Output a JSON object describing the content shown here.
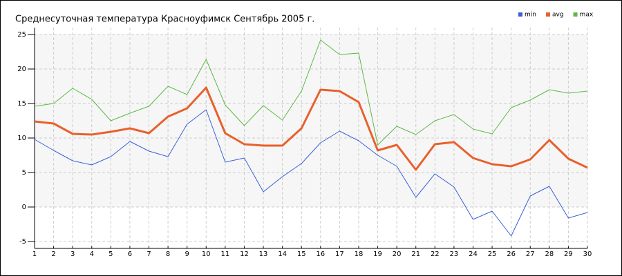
{
  "chart_data": {
    "type": "line",
    "title": "Среднесуточная температура Красноуфимск  Сентябрь 2005 г.",
    "x": [
      1,
      2,
      3,
      4,
      5,
      6,
      7,
      8,
      9,
      10,
      11,
      12,
      13,
      14,
      15,
      16,
      17,
      18,
      19,
      20,
      21,
      22,
      23,
      24,
      25,
      26,
      27,
      28,
      29,
      30
    ],
    "xlim": [
      1,
      30
    ],
    "xticks": [
      1,
      2,
      3,
      4,
      5,
      6,
      7,
      8,
      9,
      10,
      11,
      12,
      13,
      14,
      15,
      16,
      17,
      18,
      19,
      20,
      21,
      22,
      23,
      24,
      25,
      26,
      27,
      28,
      29,
      30
    ],
    "ylim": [
      -6,
      26
    ],
    "yticks": [
      -5,
      0,
      5,
      10,
      15,
      20,
      25
    ],
    "shade_band": [
      0,
      25
    ],
    "grid": true,
    "legend": "top-right",
    "series": [
      {
        "name": "min",
        "color": "#3a5fd8",
        "values": [
          9.8,
          8.2,
          6.7,
          6.1,
          7.3,
          9.5,
          8.1,
          7.3,
          12.0,
          14.1,
          6.5,
          7.1,
          2.2,
          4.4,
          6.3,
          9.3,
          11.0,
          9.6,
          7.5,
          5.9,
          1.4,
          4.8,
          2.9,
          -1.8,
          -0.6,
          -4.2,
          1.6,
          3.0,
          -1.6,
          -0.8
        ]
      },
      {
        "name": "avg",
        "color": "#e8602c",
        "values": [
          12.4,
          12.1,
          10.6,
          10.5,
          10.9,
          11.4,
          10.7,
          13.1,
          14.3,
          17.3,
          10.7,
          9.1,
          8.9,
          8.9,
          11.4,
          17.0,
          16.8,
          15.2,
          8.2,
          9.0,
          5.4,
          9.1,
          9.4,
          7.1,
          6.2,
          5.9,
          6.9,
          9.7,
          7.0,
          5.7
        ]
      },
      {
        "name": "max",
        "color": "#5cb845",
        "values": [
          14.6,
          15.0,
          17.2,
          15.6,
          12.5,
          13.6,
          14.6,
          17.5,
          16.3,
          21.4,
          14.8,
          11.8,
          14.7,
          12.6,
          16.8,
          24.2,
          22.1,
          22.3,
          9.0,
          11.7,
          10.5,
          12.5,
          13.4,
          11.3,
          10.6,
          14.4,
          15.5,
          17.0,
          16.5,
          16.8
        ]
      }
    ]
  }
}
